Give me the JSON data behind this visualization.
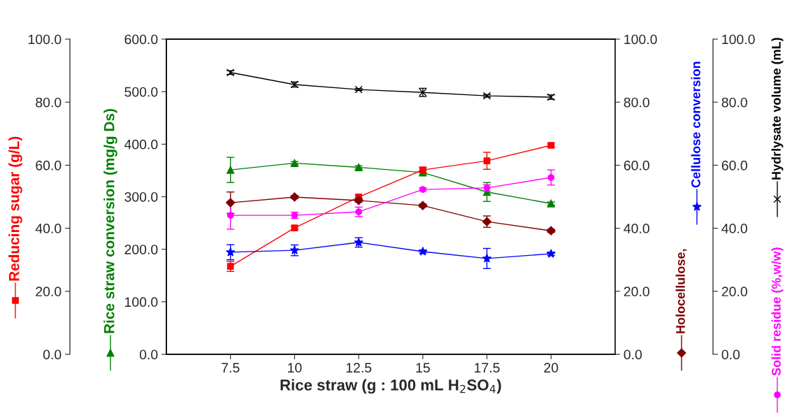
{
  "chart_data": {
    "type": "line",
    "xlabel": "Rice straw (g : 100 mL H$_{2}$SO$_{4}$)",
    "x": [
      7.5,
      10,
      12.5,
      15,
      17.5,
      20
    ],
    "xlim": [
      5,
      22.5
    ],
    "xticks": [
      7.5,
      10,
      12.5,
      15,
      17.5,
      20
    ],
    "ylim": [
      0,
      100
    ],
    "yticks": [
      {
        "value": 0,
        "label": "0.0"
      },
      {
        "value": 20,
        "label": "20.0"
      },
      {
        "value": 40,
        "label": "40.0"
      },
      {
        "value": 60,
        "label": "60.0"
      },
      {
        "value": 80,
        "label": "80.0"
      },
      {
        "value": 100,
        "label": "100.0"
      }
    ],
    "y2lim": [
      0,
      600
    ],
    "y2ticks": [
      {
        "value": 0,
        "label": "0.0"
      },
      {
        "value": 100,
        "label": "100.0"
      },
      {
        "value": 200,
        "label": "200.0"
      },
      {
        "value": 300,
        "label": "300.0"
      },
      {
        "value": 400,
        "label": "400.0"
      },
      {
        "value": 500,
        "label": "500.0"
      },
      {
        "value": 600,
        "label": "600.0"
      }
    ],
    "y3lim": [
      0,
      100
    ],
    "y3ticks": [
      {
        "value": 0,
        "label": "0.0"
      },
      {
        "value": 20,
        "label": "20.0"
      },
      {
        "value": 40,
        "label": "40.0"
      },
      {
        "value": 60,
        "label": "60.0"
      },
      {
        "value": 80,
        "label": "80.0"
      },
      {
        "value": 100,
        "label": "100.0"
      }
    ],
    "series": [
      {
        "name": "Reducing sugar (g/L)",
        "axis": "y",
        "color": "#ff0000",
        "marker": "square",
        "values": [
          27.9,
          40.1,
          49.9,
          58.5,
          61.4,
          66.3
        ],
        "errors": [
          1.6,
          0.5,
          0.5,
          0.8,
          2.7,
          0.5
        ]
      },
      {
        "name": "Rice straw conversion (mg/g Ds)",
        "axis": "y2",
        "color": "#008000",
        "marker": "triangle",
        "values": [
          351,
          364,
          356,
          346,
          309,
          287
        ],
        "errors": [
          24,
          3,
          3,
          4,
          18,
          3
        ]
      },
      {
        "name": "Holocellulose,",
        "axis": "y3",
        "color": "#800000",
        "marker": "diamond",
        "values": [
          48.1,
          49.9,
          48.8,
          47.2,
          42.1,
          39.2
        ],
        "errors": [
          3.4,
          0.5,
          0.5,
          0.5,
          1.8,
          0.5
        ]
      },
      {
        "name": "Cellulose conversion",
        "axis": "y3",
        "color": "#0000ff",
        "marker": "star",
        "values": [
          32.4,
          33.0,
          35.5,
          32.6,
          30.4,
          31.9
        ],
        "errors": [
          2.4,
          1.7,
          1.5,
          0.5,
          3.2,
          0.5
        ]
      },
      {
        "name": "Solid residue (%,w/w)",
        "axis": "y3",
        "color": "#ff00ff",
        "marker": "circle",
        "values": [
          44.1,
          44.1,
          45.2,
          52.3,
          52.8,
          56.1
        ],
        "errors": [
          4.4,
          1,
          1.5,
          0.5,
          1,
          2.4
        ]
      },
      {
        "name": "Hydrlysate volume (mL)",
        "axis": "y3",
        "color": "#000000",
        "marker": "cross",
        "values": [
          89.4,
          85.6,
          84.0,
          83.1,
          82.0,
          81.6
        ],
        "errors": [
          0.6,
          0.8,
          0.3,
          1.3,
          0.4,
          0.7
        ]
      }
    ]
  }
}
